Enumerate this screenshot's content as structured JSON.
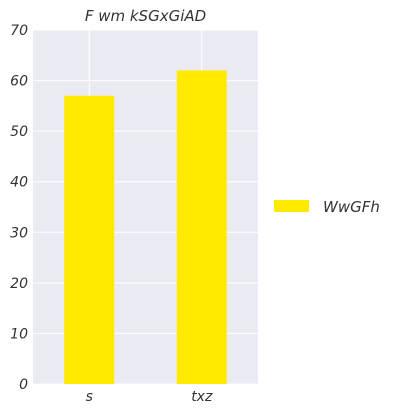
{
  "chart_data": {
    "type": "bar",
    "title": "F wm kSGxGiAD",
    "categories": [
      "s",
      "txz"
    ],
    "series": [
      {
        "name": "WwGFh",
        "values": [
          57,
          62
        ],
        "color": "#ffea00"
      }
    ],
    "xlabel": "",
    "ylabel": "",
    "ylim": [
      0,
      70
    ],
    "yticks": [
      0,
      10,
      20,
      30,
      40,
      50,
      60,
      70
    ],
    "grid": true,
    "legend_position": "right",
    "background_color": "#eaeaf2"
  }
}
